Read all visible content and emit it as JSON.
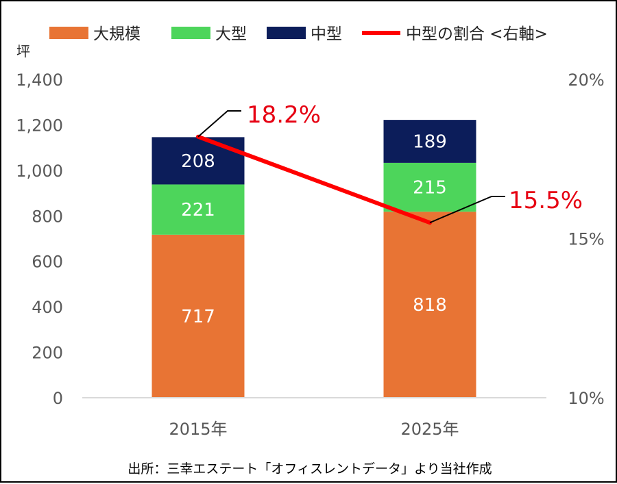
{
  "chart_data": {
    "type": "bar",
    "stacked": true,
    "categories": [
      "2015年",
      "2025年"
    ],
    "series": [
      {
        "name": "大規模",
        "values": [
          717,
          818
        ],
        "color": "#e87434"
      },
      {
        "name": "大型",
        "values": [
          221,
          215
        ],
        "color": "#4dd55b"
      },
      {
        "name": "中型",
        "values": [
          208,
          189
        ],
        "color": "#0c1d5a"
      }
    ],
    "line_series": {
      "name": "中型の割合 <右軸>",
      "values": [
        18.2,
        15.5
      ],
      "labels": [
        "18.2%",
        "15.5%"
      ],
      "color": "#ff0000"
    },
    "ylabel": "坪",
    "ylim": [
      0,
      1400
    ],
    "yticks": [
      0,
      200,
      400,
      600,
      800,
      1000,
      1200,
      1400
    ],
    "ytick_labels": [
      "0",
      "200",
      "400",
      "600",
      "800",
      "1,000",
      "1,200",
      "1,400"
    ],
    "y2lim": [
      10,
      20
    ],
    "y2ticks": [
      10,
      15,
      20
    ],
    "y2tick_labels": [
      "10%",
      "15%",
      "20%"
    ],
    "legend_position": "top"
  },
  "legend": {
    "items": [
      {
        "label": "大規模",
        "color": "#e87434",
        "kind": "box"
      },
      {
        "label": "大型",
        "color": "#4dd55b",
        "kind": "box"
      },
      {
        "label": "中型",
        "color": "#0c1d5a",
        "kind": "box"
      },
      {
        "label": "中型の割合 <右軸>",
        "color": "#ff0000",
        "kind": "line"
      }
    ]
  },
  "unit_label": "坪",
  "source": "出所：三幸エステート「オフィスレントデータ」より当社作成"
}
